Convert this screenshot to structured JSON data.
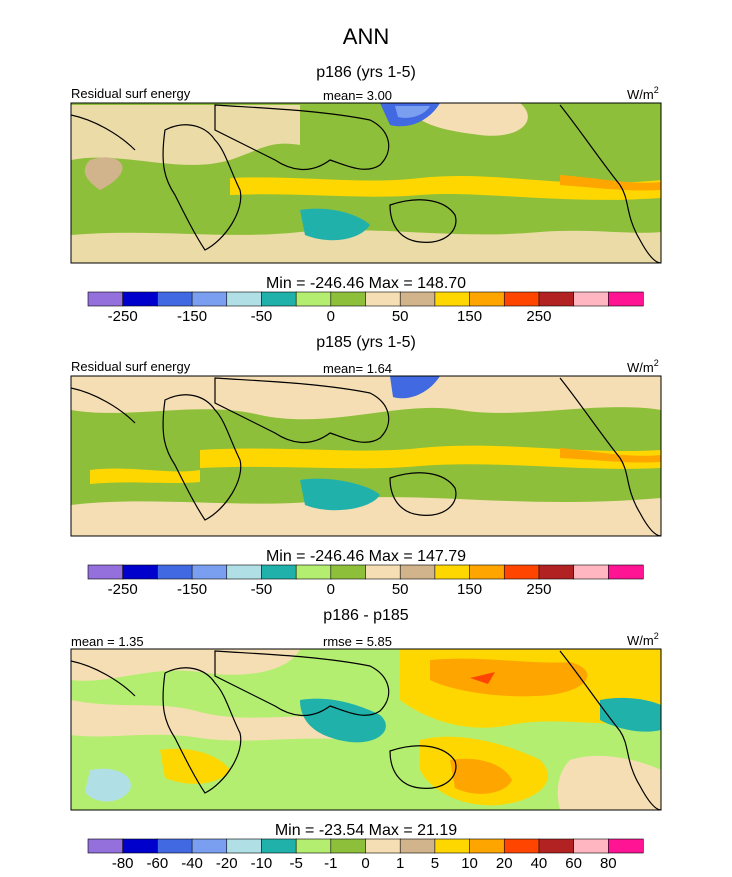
{
  "title": "ANN",
  "chart_data": [
    {
      "type": "heatmap",
      "subtitle": "p186 (yrs 1-5)",
      "left_label": "Residual surf energy",
      "center_label": "mean=  3.00",
      "units_base": "W/m",
      "units_exp": "2",
      "minmax": "Min = -246.46 Max = 148.70",
      "colorbar": {
        "colors": [
          "#9370db",
          "#0000cd",
          "#4169e1",
          "#7b9ff0",
          "#b0e0e6",
          "#20b2aa",
          "#b4ee70",
          "#8dbf3a",
          "#f5deb3",
          "#d2b48c",
          "#ffd700",
          "#ffa500",
          "#ff4500",
          "#b22222",
          "#ffb6c1",
          "#ff1493"
        ],
        "tick_labels": [
          "-250",
          "-150",
          "-50",
          "0",
          "50",
          "150",
          "250"
        ]
      }
    },
    {
      "type": "heatmap",
      "subtitle": "p185 (yrs 1-5)",
      "left_label": "Residual surf energy",
      "center_label": "mean=  1.64",
      "units_base": "W/m",
      "units_exp": "2",
      "minmax": "Min = -246.46 Max = 147.79",
      "colorbar": {
        "colors": [
          "#9370db",
          "#0000cd",
          "#4169e1",
          "#7b9ff0",
          "#b0e0e6",
          "#20b2aa",
          "#b4ee70",
          "#8dbf3a",
          "#f5deb3",
          "#d2b48c",
          "#ffd700",
          "#ffa500",
          "#ff4500",
          "#b22222",
          "#ffb6c1",
          "#ff1493"
        ],
        "tick_labels": [
          "-250",
          "-150",
          "-50",
          "0",
          "50",
          "150",
          "250"
        ]
      }
    },
    {
      "type": "heatmap",
      "subtitle": "p186 - p185",
      "left_label": "mean =  1.35",
      "center_label": "rmse =  5.85",
      "units_base": "W/m",
      "units_exp": "2",
      "minmax": "Min = -23.54 Max = 21.19",
      "colorbar": {
        "colors": [
          "#9370db",
          "#0000cd",
          "#4169e1",
          "#7b9ff0",
          "#b0e0e6",
          "#20b2aa",
          "#b4ee70",
          "#8dbf3a",
          "#f5deb3",
          "#d2b48c",
          "#ffd700",
          "#ffa500",
          "#ff4500",
          "#b22222",
          "#ffb6c1",
          "#ff1493"
        ],
        "tick_labels": [
          "-80",
          "-60",
          "-40",
          "-20",
          "-10",
          "-5",
          "-1",
          "0",
          "1",
          "5",
          "10",
          "20",
          "40",
          "60",
          "80"
        ]
      }
    }
  ]
}
